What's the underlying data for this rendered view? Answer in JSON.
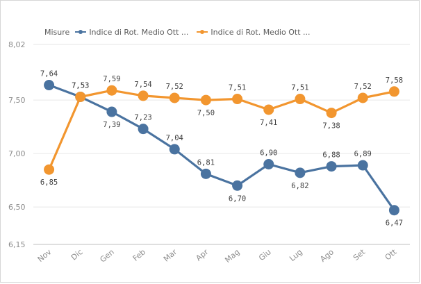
{
  "chart_data": {
    "type": "line",
    "categories": [
      "Nov",
      "Dic",
      "Gen",
      "Feb",
      "Mar",
      "Apr",
      "Mag",
      "Giu",
      "Lug",
      "Ago",
      "Set",
      "Ott"
    ],
    "series": [
      {
        "name": "Indice di Rot. Medio Ott ...",
        "color": "#4a73a0",
        "values": [
          7.64,
          7.53,
          7.39,
          7.23,
          7.04,
          6.81,
          6.7,
          6.9,
          6.82,
          6.88,
          6.89,
          6.47
        ],
        "labels": [
          "7,64",
          "7,53",
          "7,39",
          "7,23",
          "7,04",
          "6,81",
          "6,70",
          "6,90",
          "6,82",
          "6,88",
          "6,89",
          "6,47"
        ],
        "label_position": [
          "above",
          "above",
          "below",
          "above",
          "above",
          "above",
          "below",
          "above",
          "below",
          "above",
          "above",
          "below"
        ]
      },
      {
        "name": "Indice di Rot. Medio Ott ...",
        "color": "#f2962f",
        "values": [
          6.85,
          7.53,
          7.59,
          7.54,
          7.52,
          7.5,
          7.51,
          7.41,
          7.51,
          7.38,
          7.52,
          7.58
        ],
        "labels": [
          "6,85",
          "7,53",
          "7,59",
          "7,54",
          "7,52",
          "7,50",
          "7,51",
          "7,41",
          "7,51",
          "7,38",
          "7,52",
          "7,58"
        ],
        "label_position": [
          "below",
          "above",
          "above",
          "above",
          "above",
          "below",
          "above",
          "below",
          "above",
          "below",
          "above",
          "above"
        ]
      }
    ],
    "yticks": [
      8.02,
      7.5,
      7.0,
      6.5,
      6.15
    ],
    "ytick_labels": [
      "8,02",
      "7,50",
      "7,00",
      "6,50",
      "6,15"
    ],
    "ylim": [
      6.15,
      8.02
    ],
    "xlabel": "",
    "ylabel": "",
    "grid": true,
    "legend": {
      "title": "Misure",
      "placement": "top-left"
    }
  }
}
